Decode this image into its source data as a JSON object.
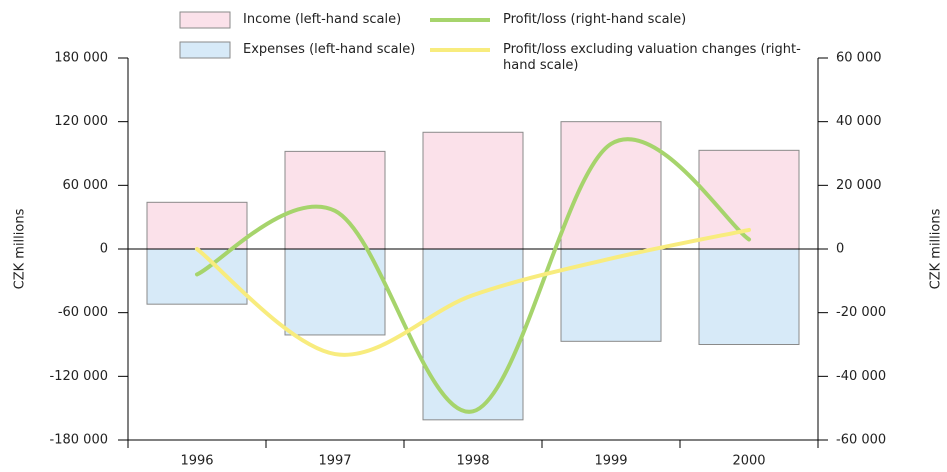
{
  "chart_data": {
    "type": "bar-line",
    "ylabel": "CZK millions",
    "y2label": "CZK millions",
    "categories": [
      "1996",
      "1997",
      "1998",
      "1999",
      "2000"
    ],
    "series": [
      {
        "name": "Income (left-hand scale)",
        "type": "bar",
        "color": "#fbe1ea",
        "values": [
          44000,
          92000,
          110000,
          120000,
          93000
        ]
      },
      {
        "name": "Expenses (left-hand scale)",
        "type": "bar",
        "color": "#d7eaf8",
        "values": [
          -52000,
          -81000,
          -161000,
          -87000,
          -90000
        ]
      },
      {
        "name": "Profit/loss (right-hand scale)",
        "type": "line",
        "axis": "y2",
        "color": "#a6d46c",
        "values": [
          -8000,
          12000,
          -51000,
          33000,
          3000
        ]
      },
      {
        "name": "Profit/loss excluding valuation changes (right-hand scale)",
        "type": "line",
        "axis": "y2",
        "color": "#f8ec7e",
        "values": [
          0,
          -33000,
          -14500,
          -3000,
          6000
        ]
      }
    ],
    "ylim": [
      -180000,
      180000
    ],
    "yticks": [
      {
        "value": -180000,
        "label": "-180 000"
      },
      {
        "value": -120000,
        "label": "-120 000"
      },
      {
        "value": -60000,
        "label": "-60 000"
      },
      0,
      {
        "value": 60000,
        "label": "60 000"
      },
      {
        "value": 120000,
        "label": "120 000"
      },
      {
        "value": 180000,
        "label": "180 000"
      }
    ],
    "y2lim": [
      -60000,
      60000
    ],
    "y2ticks": [
      {
        "value": -60000,
        "label": "-60 000"
      },
      {
        "value": -40000,
        "label": "-40 000"
      },
      {
        "value": -20000,
        "label": "-20 000"
      },
      0,
      {
        "value": 20000,
        "label": "20 000"
      },
      {
        "value": 40000,
        "label": "40 000"
      },
      {
        "value": 60000,
        "label": "60 000"
      }
    ]
  }
}
